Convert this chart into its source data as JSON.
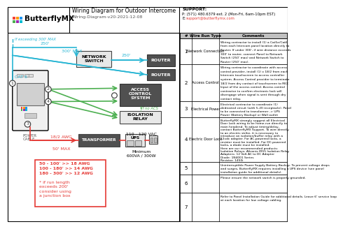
{
  "title": "Wiring Diagram for Outdoor Intercome",
  "subtitle": "Wiring-Diagram-v20-2021-12-08",
  "support_label": "SUPPORT:",
  "support_phone": "P: (571) 480.6379 ext. 2 (Mon-Fri, 6am-10pm EST)",
  "support_email": "support@butterflymx.com",
  "bg_color": "#ffffff",
  "cyan_color": "#29b6d4",
  "green_color": "#4caf50",
  "red_color": "#e53935",
  "logo_colors": [
    "#f44336",
    "#9c27b0",
    "#ff9800",
    "#4caf50",
    "#2196f3",
    "#00bcd4"
  ],
  "wire_run_types": [
    "Network Connection",
    "Access Control",
    "Electrical Power",
    "Electric Door Lock",
    "",
    "",
    ""
  ],
  "row_comments": [
    "Wiring contractor to install (1) a Cat5e/Cat6\nfrom each Intercom panel location directly to\nRouter. If under 300', if wire distance exceeds\n300' to router, connect Panel to Network\nSwitch (250' max) and Network Switch to\nRouter (250' max).",
    "Wiring contractor to coordinate with access\ncontrol provider, install (1) x 18/2 from each\nIntercom touchscreen to access controller\nsystem. Access Control provider to terminate\n18/2 from dry contact of touchscreen to REX\nInput of the access control. Access control\ncontractor to confirm electronic lock will\ndisengage when signal is sent through dry\ncontact relay.",
    "Electrical contractor to coordinate (1)\ndedicated circuit (with 5-20 receptacle). Panel\nto be connected to transformer -> UPS\nPower (Battery Backup) or Wall outlet",
    "ButterflyMX strongly suggest all Electrical\nDoor Lock wiring to be home-run directly to\nmain headend. To adjust timing/delay,\ncontact ButterflyMX Support. To wire directly\nto an electric strike, it is necessary to\nintroduce an isolation/buffer relay with a\n12vdc adapter. For AC-powered locks, a\nresistor must be installed. For DC-powered\nlocks, a diode must be installed.\nHere are our recommended products:\nIsolation Relays: Altronix IR55 Isolation Relay\nAdapters: 12 Volt AC to DC Adapter\nDiode: 1N4001 Series\nResistor: 1450i",
    "Uninterruptible Power Supply Battery Backup. To prevent voltage drops\nand surges, ButterflyMX requires installing a UPS device (see panel\ninstallation guide for additional details).",
    "Please ensure the network switch is properly grounded.",
    "Refer to Panel Installation Guide for additional details. Leave 6' service loop\nat each location for low voltage cabling."
  ]
}
